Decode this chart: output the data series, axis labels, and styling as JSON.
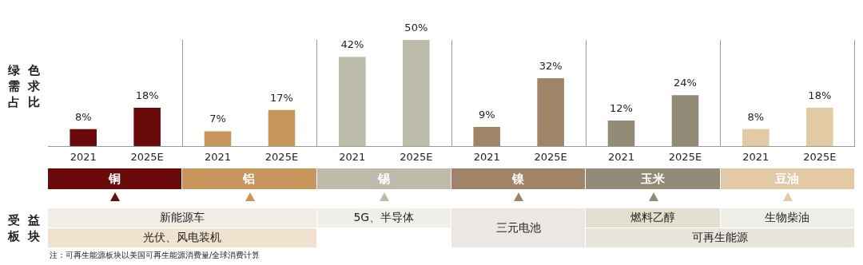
{
  "chart_data": {
    "type": "bar",
    "ylabel": "绿色需求占比",
    "categories": [
      "铜",
      "铝",
      "锡",
      "镍",
      "玉米",
      "豆油"
    ],
    "series": [
      {
        "name": "2021",
        "colors": [
          "#6b0a0a",
          "#c8955a",
          "#bdbcaa",
          "#a08468",
          "#938a78",
          "#e2cba4"
        ],
        "values": [
          8,
          7,
          42,
          9,
          12,
          8
        ],
        "value_labels": [
          "8%",
          "7%",
          "42%",
          "9%",
          "12%",
          "8%"
        ]
      },
      {
        "name": "2025E",
        "colors": [
          "#6b0a0a",
          "#c8955a",
          "#bdbcaa",
          "#a08468",
          "#938a78",
          "#e2cba4"
        ],
        "values": [
          18,
          17,
          50,
          32,
          24,
          18
        ],
        "value_labels": [
          "18%",
          "17%",
          "50%",
          "32%",
          "24%",
          "18%"
        ]
      }
    ],
    "grid": "x",
    "legend": false,
    "annotations": [
      "受益板块",
      "新能源车",
      "光伏、风电装机",
      "5G、半导体",
      "三元电池",
      "燃料乙醇",
      "生物柴油",
      "可再生能源",
      "注：可再生能源板块以美国可再生能源消费量/全球消费计算"
    ]
  }
}
